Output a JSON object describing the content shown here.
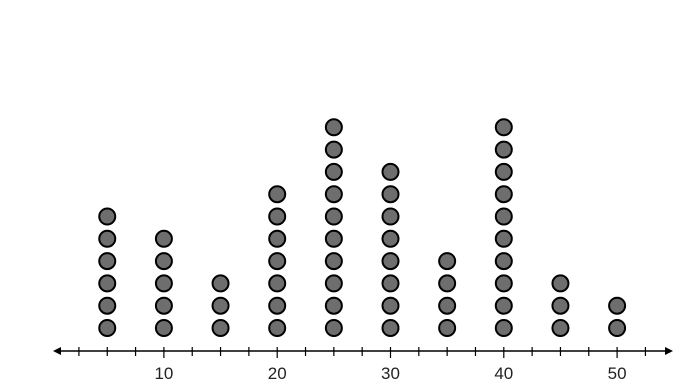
{
  "chart_data": {
    "type": "dot_plot",
    "x": [
      5,
      10,
      15,
      20,
      25,
      30,
      35,
      40,
      45,
      50
    ],
    "counts": [
      6,
      5,
      3,
      7,
      10,
      8,
      4,
      10,
      3,
      2
    ],
    "xlim": [
      0,
      54
    ],
    "minor_tick_step": 2.5,
    "tick_labels": [
      "10",
      "20",
      "30",
      "40",
      "50"
    ],
    "tick_label_values": [
      10,
      20,
      30,
      40,
      50
    ],
    "title": "",
    "xlabel": "",
    "ylabel": "",
    "grid": false,
    "dot_color": "#6e6e6e",
    "dot_stroke": "#000000",
    "axis_color": "#000000"
  }
}
